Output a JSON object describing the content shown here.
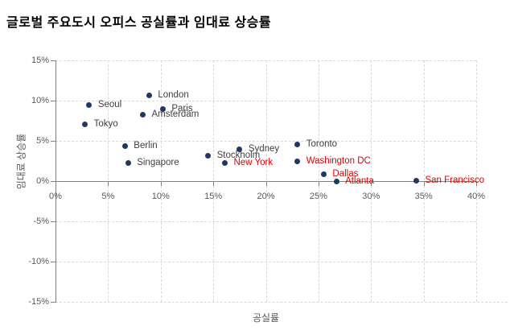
{
  "chart_data": {
    "type": "scatter",
    "title": "글로벌 주요도시 오피스 공실률과 임대료 상승률",
    "xlabel": "공실률",
    "ylabel": "임대료 상승률",
    "xlim": [
      0,
      40
    ],
    "ylim": [
      -15,
      15
    ],
    "x_ticks": [
      "0%",
      "5%",
      "10%",
      "15%",
      "20%",
      "25%",
      "30%",
      "35%",
      "40%"
    ],
    "y_ticks": [
      "15%",
      "10%",
      "5%",
      "0%",
      "-5%",
      "-10%",
      "-15%"
    ],
    "grid": "dashed",
    "legend": "none",
    "points": [
      {
        "city": "Seoul",
        "vacancy_pct": 3.2,
        "rent_growth_pct": 9.5,
        "highlight": false
      },
      {
        "city": "Tokyo",
        "vacancy_pct": 2.8,
        "rent_growth_pct": 7.1,
        "highlight": false
      },
      {
        "city": "London",
        "vacancy_pct": 8.9,
        "rent_growth_pct": 10.7,
        "highlight": false
      },
      {
        "city": "Paris",
        "vacancy_pct": 10.2,
        "rent_growth_pct": 9.0,
        "highlight": false
      },
      {
        "city": "Amsterdam",
        "vacancy_pct": 8.3,
        "rent_growth_pct": 8.3,
        "highlight": false
      },
      {
        "city": "Berlin",
        "vacancy_pct": 6.6,
        "rent_growth_pct": 4.4,
        "highlight": false
      },
      {
        "city": "Singapore",
        "vacancy_pct": 6.9,
        "rent_growth_pct": 2.3,
        "highlight": false
      },
      {
        "city": "Stockholm",
        "vacancy_pct": 14.5,
        "rent_growth_pct": 3.2,
        "highlight": false
      },
      {
        "city": "New York",
        "vacancy_pct": 16.1,
        "rent_growth_pct": 2.3,
        "highlight": true
      },
      {
        "city": "Sydney",
        "vacancy_pct": 17.5,
        "rent_growth_pct": 4.0,
        "highlight": false
      },
      {
        "city": "Toronto",
        "vacancy_pct": 23.0,
        "rent_growth_pct": 4.6,
        "highlight": false
      },
      {
        "city": "Washington DC",
        "vacancy_pct": 23.0,
        "rent_growth_pct": 2.5,
        "highlight": true
      },
      {
        "city": "Dallas",
        "vacancy_pct": 25.5,
        "rent_growth_pct": 0.9,
        "highlight": true
      },
      {
        "city": "Atlanta",
        "vacancy_pct": 26.7,
        "rent_growth_pct": 0.0,
        "highlight": true
      },
      {
        "city": "San Francisco",
        "vacancy_pct": 34.3,
        "rent_growth_pct": 0.1,
        "highlight": true
      }
    ],
    "colors": {
      "marker": "#1F3864",
      "label_default": "#404040",
      "label_highlight": "#E00000",
      "gridline": "#D9D9D9",
      "axis_line": "#808080",
      "tick_label": "#595959",
      "title": "#000000",
      "background": "#FFFFFF"
    }
  }
}
